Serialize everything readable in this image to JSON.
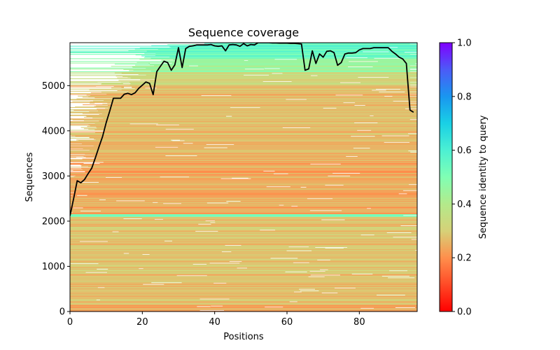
{
  "chart_data": {
    "type": "heatmap",
    "title": "Sequence coverage",
    "xlabel": "Positions",
    "ylabel": "Sequences",
    "xlim": [
      0,
      96
    ],
    "ylim": [
      0,
      5950
    ],
    "x_ticks": [
      0,
      20,
      40,
      60,
      80
    ],
    "y_ticks": [
      0,
      1000,
      2000,
      3000,
      4000,
      5000
    ],
    "colorbar": {
      "label": "Sequence identity to query",
      "range": [
        0.0,
        1.0
      ],
      "ticks": [
        "0.0",
        "0.2",
        "0.4",
        "0.6",
        "0.8",
        "1.0"
      ],
      "colormap": "rainbow"
    },
    "coverage_line": {
      "name": "coverage",
      "color": "#000000",
      "x": [
        0,
        1,
        2,
        3,
        4,
        5,
        6,
        7,
        8,
        9,
        10,
        11,
        12,
        13,
        14,
        15,
        16,
        17,
        18,
        19,
        20,
        21,
        22,
        23,
        24,
        25,
        26,
        27,
        28,
        29,
        30,
        31,
        32,
        33,
        34,
        35,
        36,
        37,
        38,
        39,
        40,
        41,
        42,
        43,
        44,
        45,
        46,
        47,
        48,
        49,
        50,
        51,
        52,
        53,
        54,
        55,
        56,
        57,
        58,
        59,
        60,
        61,
        62,
        63,
        64,
        65,
        66,
        67,
        68,
        69,
        70,
        71,
        72,
        73,
        74,
        75,
        76,
        77,
        78,
        79,
        80,
        81,
        82,
        83,
        84,
        85,
        86,
        87,
        88,
        89,
        90,
        91,
        92,
        93,
        94,
        95
      ],
      "y": [
        2120,
        2500,
        2895,
        2850,
        2920,
        3050,
        3170,
        3400,
        3640,
        3870,
        4180,
        4440,
        4720,
        4720,
        4720,
        4810,
        4830,
        4800,
        4840,
        4940,
        5010,
        5080,
        5050,
        4800,
        5310,
        5430,
        5540,
        5510,
        5340,
        5460,
        5840,
        5400,
        5820,
        5870,
        5880,
        5900,
        5900,
        5900,
        5900,
        5910,
        5880,
        5870,
        5880,
        5770,
        5900,
        5910,
        5900,
        5870,
        5930,
        5880,
        5910,
        5900,
        5950,
        5950,
        5950,
        5950,
        5945,
        5945,
        5940,
        5940,
        5940,
        5935,
        5935,
        5930,
        5920,
        5340,
        5370,
        5770,
        5490,
        5700,
        5630,
        5760,
        5770,
        5730,
        5450,
        5510,
        5700,
        5720,
        5720,
        5730,
        5790,
        5820,
        5820,
        5820,
        5840,
        5840,
        5840,
        5840,
        5840,
        5760,
        5700,
        5630,
        5590,
        5490,
        4460,
        4410
      ]
    },
    "identity_bands": [
      {
        "from": 0,
        "to": 150,
        "identity": 0.22
      },
      {
        "from": 150,
        "to": 2100,
        "identity": 0.28
      },
      {
        "from": 2100,
        "to": 2160,
        "identity": 0.5
      },
      {
        "from": 2160,
        "to": 3500,
        "identity": 0.24
      },
      {
        "from": 3500,
        "to": 5000,
        "identity": 0.27
      },
      {
        "from": 5000,
        "to": 5300,
        "identity": 0.33
      },
      {
        "from": 5300,
        "to": 5600,
        "identity": 0.45
      },
      {
        "from": 5600,
        "to": 5950,
        "identity": 0.55
      }
    ]
  }
}
